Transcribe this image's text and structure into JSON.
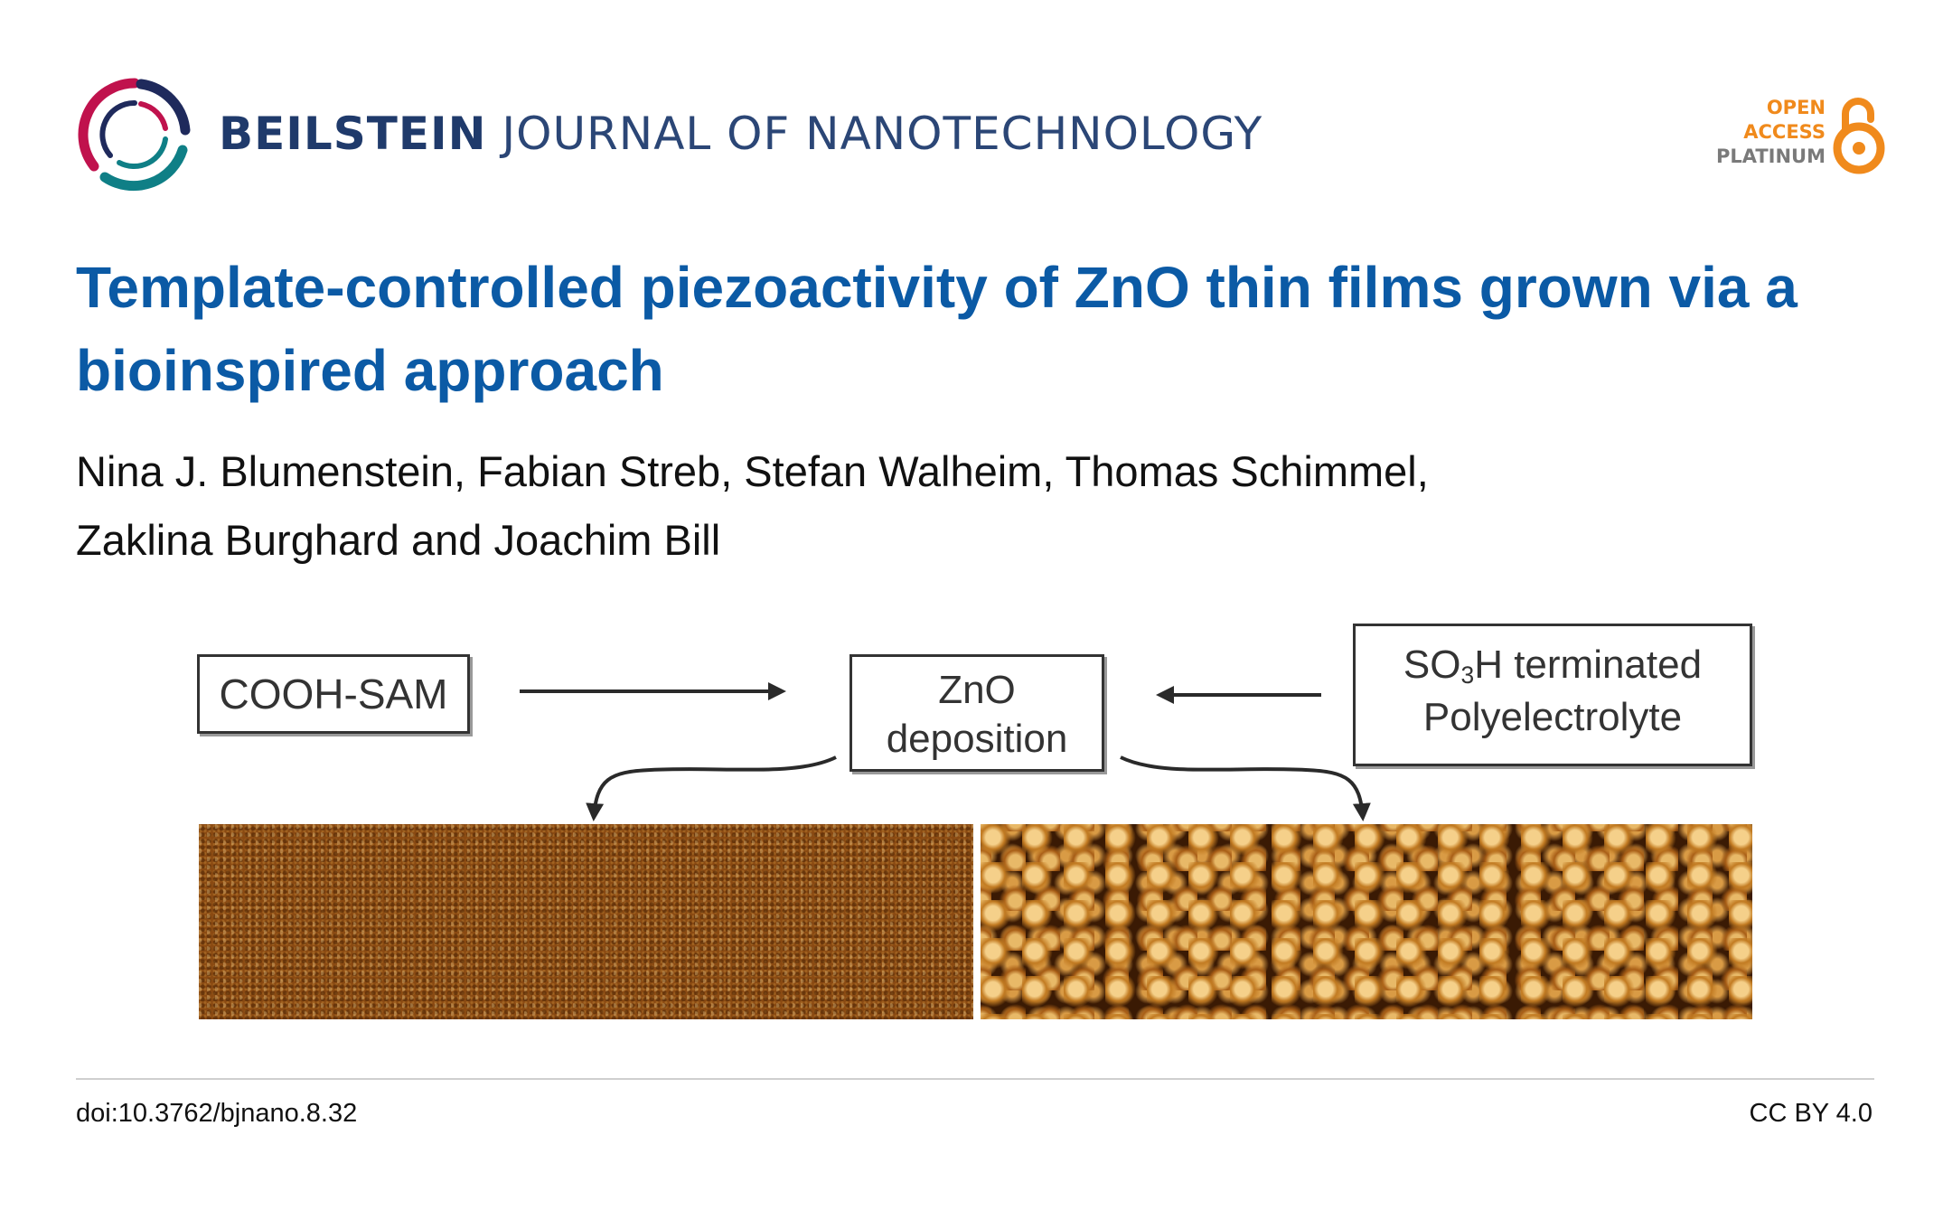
{
  "header": {
    "journal_brand": "BEILSTEIN",
    "journal_rest": "JOURNAL OF NANOTECHNOLOGY",
    "badge": {
      "line1": "OPEN",
      "line2": "ACCESS",
      "line3": "PLATINUM"
    }
  },
  "article": {
    "title": "Template-controlled piezoactivity of ZnO thin films grown via a bioinspired approach",
    "authors_line1": "Nina J. Blumenstein, Fabian Streb, Stefan Walheim, Thomas Schimmel,",
    "authors_line2": "Zaklina Burghard and Joachim Bill"
  },
  "figure": {
    "left_box": "COOH-SAM",
    "center_box_line1": "ZnO",
    "center_box_line2": "deposition",
    "right_box_pre": "SO",
    "right_box_sub": "3",
    "right_box_post": "H terminated",
    "right_box_line2": "Polyelectrolyte"
  },
  "footer": {
    "doi": "doi:10.3762/bjnano.8.32",
    "license": "CC BY 4.0"
  },
  "colors": {
    "title": "#0b5aa5",
    "journal": "#1f3a6b",
    "oa_orange": "#f08a1c",
    "logo_red": "#c0124d",
    "logo_teal": "#0f7f86",
    "logo_navy": "#1f2a5c"
  }
}
